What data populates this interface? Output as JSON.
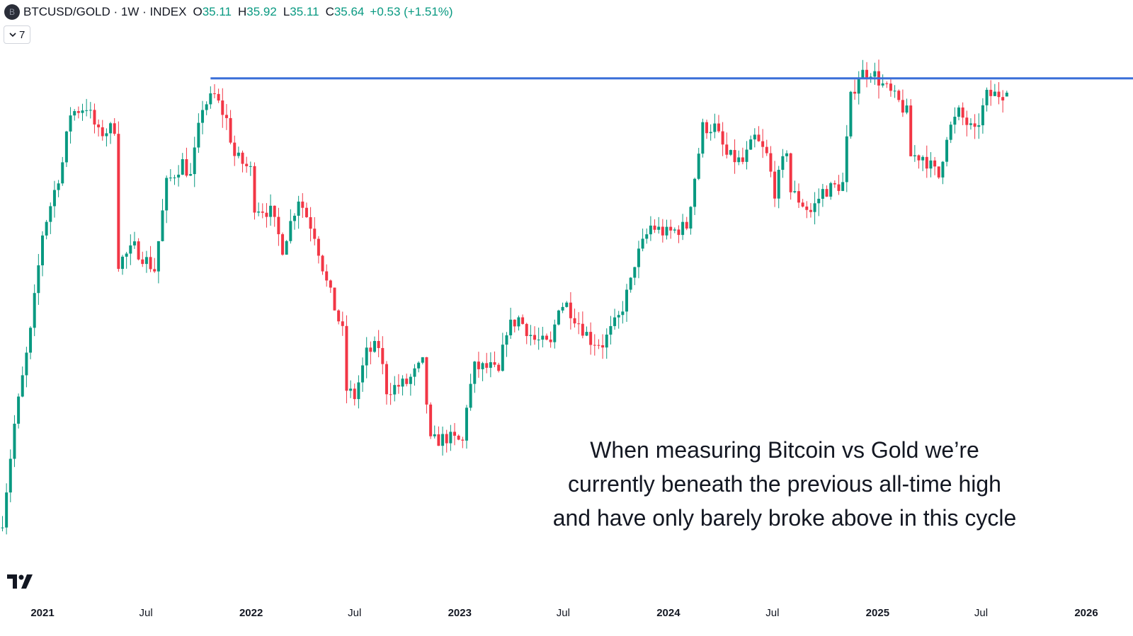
{
  "header": {
    "symbol_icon_letter": "B",
    "title": "BTCUSD/GOLD · 1W · INDEX",
    "open_label": "O",
    "open": "35.11",
    "high_label": "H",
    "high": "35.92",
    "low_label": "L",
    "low": "35.11",
    "close_label": "C",
    "close": "35.64",
    "change": "+0.53 (+1.51%)"
  },
  "indicators_button": {
    "icon": "chevron-down-icon",
    "count": "7"
  },
  "annotation_text": [
    "When measuring Bitcoin vs Gold we’re",
    "currently beneath the previous all-time high",
    "and have only barely broke above in this cycle"
  ],
  "logo": "TV",
  "chart_data": {
    "type": "candlestick",
    "interval": "1W",
    "scale": "log",
    "grid": false,
    "colors": {
      "up": "#089981",
      "down": "#f23645",
      "line": "#3a6fd8"
    },
    "last_candle": {
      "date": "2025-08-15",
      "open": 35.11,
      "high": 35.92,
      "low": 35.11,
      "close": 35.64
    },
    "close_path": [
      [
        "2020-10-23",
        6.66
      ],
      [
        "2020-11-13",
        9.69
      ],
      [
        "2020-12-11",
        13.9
      ],
      [
        "2021-01-01",
        20.5
      ],
      [
        "2021-02-05",
        27.1
      ],
      [
        "2021-02-19",
        32.9
      ],
      [
        "2021-03-19",
        33.8
      ],
      [
        "2021-04-09",
        30.3
      ],
      [
        "2021-05-07",
        31.1
      ],
      [
        "2021-05-14",
        18.3
      ],
      [
        "2021-06-11",
        19.4
      ],
      [
        "2021-07-16",
        17.8
      ],
      [
        "2021-08-06",
        24.9
      ],
      [
        "2021-09-03",
        27.1
      ],
      [
        "2021-09-17",
        25.6
      ],
      [
        "2021-10-08",
        33.8
      ],
      [
        "2021-10-29",
        35.2
      ],
      [
        "2021-11-19",
        32.0
      ],
      [
        "2021-12-03",
        27.8
      ],
      [
        "2021-12-31",
        26.3
      ],
      [
        "2022-01-07",
        22.9
      ],
      [
        "2022-02-04",
        22.3
      ],
      [
        "2022-02-25",
        19.4
      ],
      [
        "2022-03-25",
        23.6
      ],
      [
        "2022-04-22",
        20.5
      ],
      [
        "2022-05-13",
        16.9
      ],
      [
        "2022-06-10",
        13.9
      ],
      [
        "2022-06-17",
        11.1
      ],
      [
        "2022-07-01",
        10.8
      ],
      [
        "2022-07-22",
        12.8
      ],
      [
        "2022-08-12",
        13.2
      ],
      [
        "2022-08-26",
        11.1
      ],
      [
        "2022-09-30",
        11.4
      ],
      [
        "2022-10-28",
        12.3
      ],
      [
        "2022-11-11",
        9.03
      ],
      [
        "2022-12-09",
        9.2
      ],
      [
        "2023-01-06",
        9.03
      ],
      [
        "2023-01-13",
        10.5
      ],
      [
        "2023-01-27",
        12.1
      ],
      [
        "2023-02-24",
        12.1
      ],
      [
        "2023-03-10",
        11.8
      ],
      [
        "2023-03-24",
        14.1
      ],
      [
        "2023-04-14",
        14.7
      ],
      [
        "2023-05-12",
        13.5
      ],
      [
        "2023-06-09",
        13.2
      ],
      [
        "2023-06-23",
        15.5
      ],
      [
        "2023-07-07",
        15.5
      ],
      [
        "2023-08-18",
        13.5
      ],
      [
        "2023-09-08",
        13.3
      ],
      [
        "2023-10-06",
        14.7
      ],
      [
        "2023-10-27",
        16.9
      ],
      [
        "2023-11-03",
        18.3
      ],
      [
        "2023-12-01",
        21.1
      ],
      [
        "2023-12-29",
        20.5
      ],
      [
        "2024-02-02",
        21.1
      ],
      [
        "2024-02-16",
        25.6
      ],
      [
        "2024-03-01",
        31.1
      ],
      [
        "2024-03-22",
        31.1
      ],
      [
        "2024-04-12",
        27.8
      ],
      [
        "2024-05-10",
        27.1
      ],
      [
        "2024-05-31",
        29.8
      ],
      [
        "2024-06-21",
        27.8
      ],
      [
        "2024-07-05",
        24.2
      ],
      [
        "2024-07-26",
        28.6
      ],
      [
        "2024-08-02",
        24.2
      ],
      [
        "2024-09-06",
        22.3
      ],
      [
        "2024-09-27",
        24.2
      ],
      [
        "2024-11-01",
        24.9
      ],
      [
        "2024-11-15",
        34.8
      ],
      [
        "2024-11-29",
        38.3
      ],
      [
        "2024-12-20",
        38.9
      ],
      [
        "2025-01-10",
        36.7
      ],
      [
        "2025-02-07",
        34.3
      ],
      [
        "2025-02-21",
        32.9
      ],
      [
        "2025-02-28",
        27.8
      ],
      [
        "2025-03-21",
        27.8
      ],
      [
        "2025-04-18",
        25.6
      ],
      [
        "2025-05-02",
        30.3
      ],
      [
        "2025-05-23",
        32.9
      ],
      [
        "2025-06-20",
        30.3
      ],
      [
        "2025-07-11",
        35.2
      ],
      [
        "2025-08-15",
        35.64
      ]
    ],
    "horizontal_ray": {
      "value": 37.7,
      "start": "2021-10-22"
    },
    "x_ticks": [
      {
        "label": "2021",
        "date": "2021-01-01",
        "year": true
      },
      {
        "label": "Jul",
        "date": "2021-07-01",
        "year": false
      },
      {
        "label": "2022",
        "date": "2022-01-01",
        "year": true
      },
      {
        "label": "Jul",
        "date": "2022-07-01",
        "year": false
      },
      {
        "label": "2023",
        "date": "2023-01-01",
        "year": true
      },
      {
        "label": "Jul",
        "date": "2023-07-01",
        "year": false
      },
      {
        "label": "2024",
        "date": "2024-01-01",
        "year": true
      },
      {
        "label": "Jul",
        "date": "2024-07-01",
        "year": false
      },
      {
        "label": "2025",
        "date": "2025-01-01",
        "year": true
      },
      {
        "label": "Jul",
        "date": "2025-07-01",
        "year": false
      },
      {
        "label": "2026",
        "date": "2026-01-01",
        "year": true
      }
    ]
  }
}
